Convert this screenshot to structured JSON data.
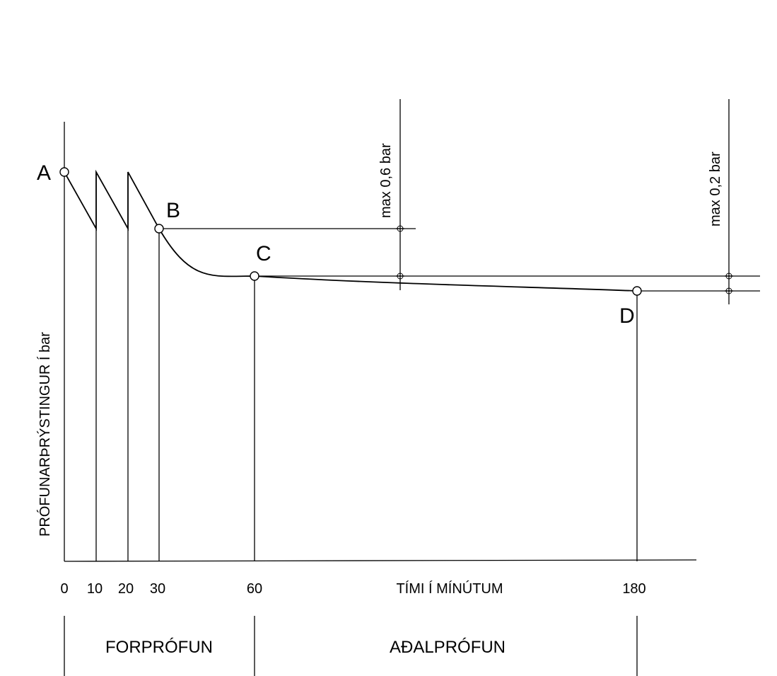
{
  "points": {
    "a": "A",
    "b": "B",
    "c": "C",
    "d": "D"
  },
  "x_ticks": [
    "0",
    "10",
    "20",
    "30",
    "60",
    "180"
  ],
  "x_axis_label": "TÍMI Í MÍNÚTUM",
  "y_axis_label": "PRÓFUNARÞRÝSTINGUR Í bar",
  "limits": {
    "first": "max 0,6 bar",
    "second": "max 0,2 bar"
  },
  "phases": {
    "pre_test": "FORPRÓFUN",
    "main_test": "AÐALPRÓFUN"
  }
}
